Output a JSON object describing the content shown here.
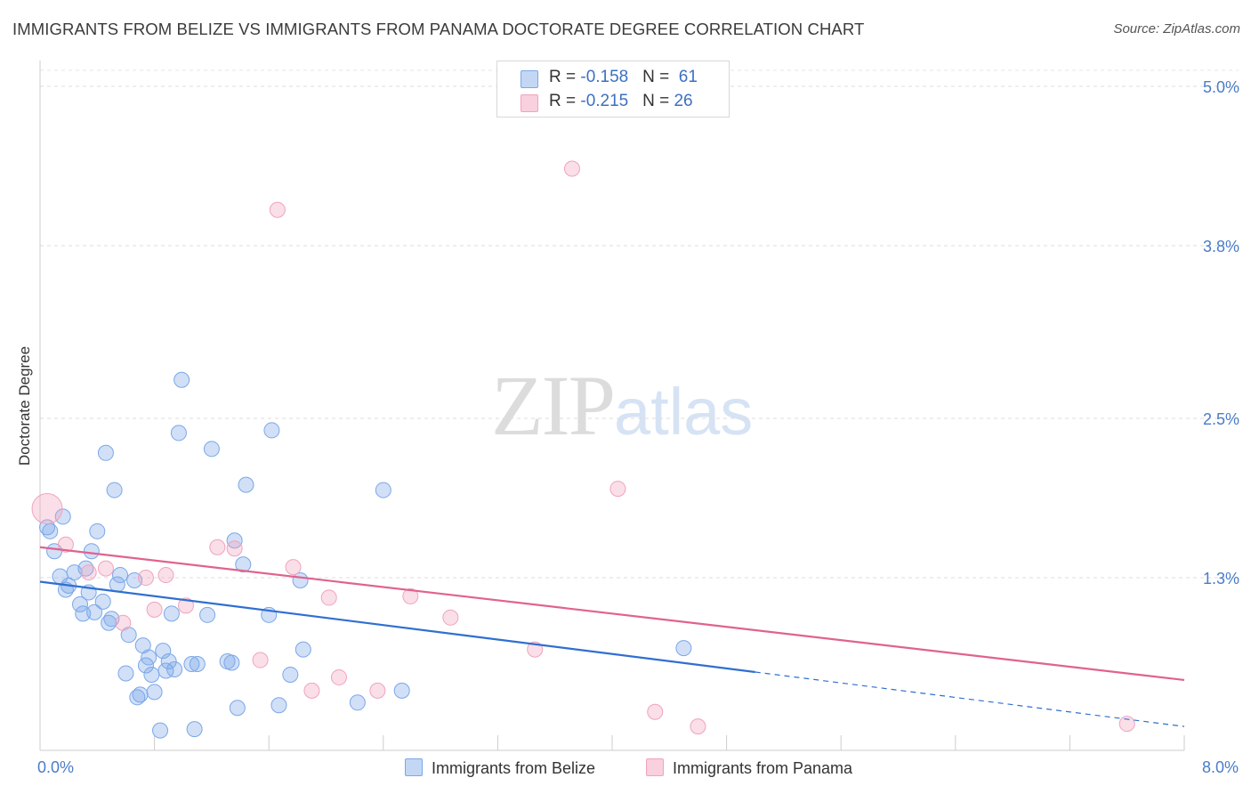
{
  "title": "IMMIGRANTS FROM BELIZE VS IMMIGRANTS FROM PANAMA DOCTORATE DEGREE CORRELATION CHART",
  "source": "Source: ZipAtlas.com",
  "watermark": {
    "zip": "ZIP",
    "atlas": "atlas"
  },
  "colors": {
    "belize": "#7aa7e8",
    "belize_line": "#2f6fd1",
    "panama": "#f0a3bd",
    "panama_line": "#e0628f",
    "axis_text": "#4a7cc9"
  },
  "legend": {
    "belize": {
      "r_label": "R = ",
      "r_value": "-0.158",
      "n_label": "N = ",
      "n_value": "61",
      "name": "Immigrants from Belize"
    },
    "panama": {
      "r_label": "R = ",
      "r_value": "-0.215",
      "n_label": "N = ",
      "n_value": "26",
      "name": "Immigrants from Panama"
    }
  },
  "chart_data": {
    "type": "scatter",
    "title": "IMMIGRANTS FROM BELIZE VS IMMIGRANTS FROM PANAMA DOCTORATE DEGREE CORRELATION CHART",
    "xlabel": "",
    "ylabel": "Doctorate Degree",
    "xlim": [
      0,
      8
    ],
    "ylim": [
      0,
      5.0
    ],
    "x_tick_labels": [
      "0.0%",
      "8.0%"
    ],
    "y_ticks": [
      1.3,
      2.5,
      3.8,
      5.0
    ],
    "y_tick_labels": [
      "1.3%",
      "2.5%",
      "3.8%",
      "5.0%"
    ],
    "grid": true,
    "series": [
      {
        "name": "Immigrants from Belize",
        "trend": {
          "x0": 0.0,
          "y0": 1.27,
          "x1": 5.0,
          "y1": 0.59,
          "dash_to_x": 8.0,
          "dash_to_y": 0.18
        },
        "points": [
          [
            0.05,
            1.68
          ],
          [
            0.07,
            1.65
          ],
          [
            0.1,
            1.5
          ],
          [
            0.14,
            1.31
          ],
          [
            0.18,
            1.21
          ],
          [
            0.2,
            1.24
          ],
          [
            0.16,
            1.76
          ],
          [
            0.24,
            1.34
          ],
          [
            0.28,
            1.1
          ],
          [
            0.3,
            1.03
          ],
          [
            0.32,
            1.37
          ],
          [
            0.34,
            1.19
          ],
          [
            0.36,
            1.5
          ],
          [
            0.38,
            1.04
          ],
          [
            0.4,
            1.65
          ],
          [
            0.44,
            1.12
          ],
          [
            0.46,
            2.24
          ],
          [
            0.48,
            0.96
          ],
          [
            0.5,
            0.99
          ],
          [
            0.52,
            1.96
          ],
          [
            0.54,
            1.25
          ],
          [
            0.56,
            1.32
          ],
          [
            0.6,
            0.58
          ],
          [
            0.62,
            0.87
          ],
          [
            0.66,
            1.28
          ],
          [
            0.68,
            0.4
          ],
          [
            0.7,
            0.42
          ],
          [
            0.72,
            0.79
          ],
          [
            0.74,
            0.64
          ],
          [
            0.76,
            0.7
          ],
          [
            0.78,
            0.57
          ],
          [
            0.8,
            0.44
          ],
          [
            0.84,
            0.15
          ],
          [
            0.86,
            0.75
          ],
          [
            0.88,
            0.6
          ],
          [
            0.9,
            0.67
          ],
          [
            0.92,
            1.03
          ],
          [
            0.94,
            0.61
          ],
          [
            0.97,
            2.39
          ],
          [
            0.99,
            2.79
          ],
          [
            1.06,
            0.65
          ],
          [
            1.08,
            0.16
          ],
          [
            1.1,
            0.65
          ],
          [
            1.17,
            1.02
          ],
          [
            1.2,
            2.27
          ],
          [
            1.31,
            0.67
          ],
          [
            1.34,
            0.66
          ],
          [
            1.36,
            1.58
          ],
          [
            1.38,
            0.32
          ],
          [
            1.42,
            1.4
          ],
          [
            1.44,
            2.0
          ],
          [
            1.6,
            1.02
          ],
          [
            1.62,
            2.41
          ],
          [
            1.67,
            0.34
          ],
          [
            1.75,
            0.57
          ],
          [
            1.82,
            1.28
          ],
          [
            1.84,
            0.76
          ],
          [
            2.22,
            0.36
          ],
          [
            2.4,
            1.96
          ],
          [
            2.53,
            0.45
          ],
          [
            4.5,
            0.77
          ]
        ]
      },
      {
        "name": "Immigrants from Panama",
        "trend": {
          "x0": 0.0,
          "y0": 1.53,
          "x1": 8.0,
          "y1": 0.53
        },
        "points": [
          [
            0.05,
            1.82
          ],
          [
            0.18,
            1.55
          ],
          [
            0.34,
            1.34
          ],
          [
            0.46,
            1.37
          ],
          [
            0.58,
            0.96
          ],
          [
            0.74,
            1.3
          ],
          [
            0.8,
            1.06
          ],
          [
            0.88,
            1.32
          ],
          [
            1.02,
            1.09
          ],
          [
            1.24,
            1.53
          ],
          [
            1.36,
            1.52
          ],
          [
            1.54,
            0.68
          ],
          [
            1.66,
            4.07
          ],
          [
            1.77,
            1.38
          ],
          [
            1.9,
            0.45
          ],
          [
            2.02,
            1.15
          ],
          [
            2.09,
            0.55
          ],
          [
            2.36,
            0.45
          ],
          [
            2.59,
            1.16
          ],
          [
            2.87,
            1.0
          ],
          [
            3.46,
            0.76
          ],
          [
            3.72,
            4.38
          ],
          [
            4.04,
            1.97
          ],
          [
            4.3,
            0.29
          ],
          [
            4.6,
            0.18
          ],
          [
            7.6,
            0.2
          ]
        ]
      }
    ]
  }
}
